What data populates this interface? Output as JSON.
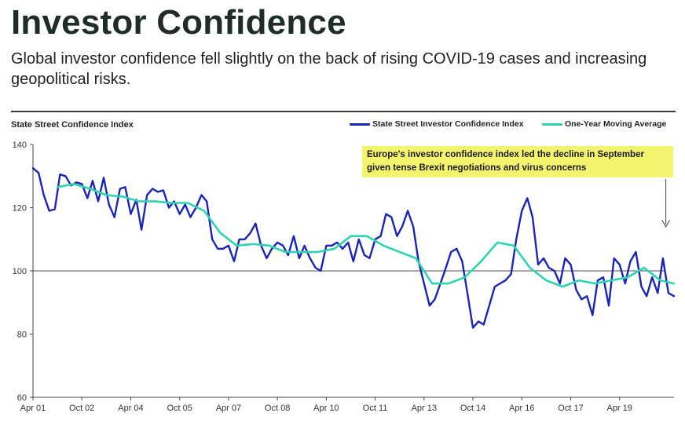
{
  "header": {
    "title": "Investor Confidence",
    "subtitle": "Global investor confidence fell slightly on the back of rising COVID-19 cases and increasing geopolitical risks."
  },
  "chart_data": {
    "type": "line",
    "ylabel": "State Street Confidence Index",
    "ylim": [
      60,
      140
    ],
    "yticks": [
      60,
      80,
      100,
      120,
      140
    ],
    "xlim": [
      2001.25,
      2020.92
    ],
    "xticks": [
      {
        "label": "Apr 01",
        "x": 2001.25
      },
      {
        "label": "Oct 02",
        "x": 2002.75
      },
      {
        "label": "Apr 04",
        "x": 2004.25
      },
      {
        "label": "Oct 05",
        "x": 2005.75
      },
      {
        "label": "Apr 07",
        "x": 2007.25
      },
      {
        "label": "Oct 08",
        "x": 2008.75
      },
      {
        "label": "Apr 10",
        "x": 2010.25
      },
      {
        "label": "Oct 11",
        "x": 2011.75
      },
      {
        "label": "Apr 13",
        "x": 2013.25
      },
      {
        "label": "Oct 14",
        "x": 2014.75
      },
      {
        "label": "Apr 16",
        "x": 2016.25
      },
      {
        "label": "Oct 17",
        "x": 2017.75
      },
      {
        "label": "Apr 19",
        "x": 2019.25
      }
    ],
    "reference_line": 100,
    "grid": false,
    "legend_position": "top-right",
    "annotation": "Europe's investor confidence index led the decline in September given tense Brexit negotiations and virus concerns",
    "annotation_arrow_x": 2020.67,
    "series": [
      {
        "name": "State Street Investor Confidence Index",
        "color": "#1a24b5",
        "points": [
          [
            2001.25,
            132.5
          ],
          [
            2001.42,
            131
          ],
          [
            2001.58,
            124
          ],
          [
            2001.75,
            119
          ],
          [
            2001.92,
            119.5
          ],
          [
            2002.08,
            130.5
          ],
          [
            2002.25,
            130
          ],
          [
            2002.42,
            127
          ],
          [
            2002.58,
            128
          ],
          [
            2002.75,
            127.5
          ],
          [
            2002.92,
            123
          ],
          [
            2003.08,
            128.5
          ],
          [
            2003.25,
            122
          ],
          [
            2003.42,
            129.5
          ],
          [
            2003.58,
            121
          ],
          [
            2003.75,
            117
          ],
          [
            2003.92,
            126
          ],
          [
            2004.08,
            126.5
          ],
          [
            2004.25,
            118
          ],
          [
            2004.42,
            122.5
          ],
          [
            2004.58,
            113
          ],
          [
            2004.75,
            124
          ],
          [
            2004.92,
            126
          ],
          [
            2005.08,
            125
          ],
          [
            2005.25,
            125.5
          ],
          [
            2005.42,
            120
          ],
          [
            2005.58,
            122
          ],
          [
            2005.75,
            118
          ],
          [
            2005.92,
            121
          ],
          [
            2006.08,
            117
          ],
          [
            2006.25,
            120
          ],
          [
            2006.42,
            124
          ],
          [
            2006.58,
            122
          ],
          [
            2006.75,
            110
          ],
          [
            2006.92,
            107
          ],
          [
            2007.08,
            107
          ],
          [
            2007.25,
            108
          ],
          [
            2007.42,
            103
          ],
          [
            2007.58,
            110
          ],
          [
            2007.75,
            110
          ],
          [
            2007.92,
            112
          ],
          [
            2008.08,
            115
          ],
          [
            2008.25,
            108
          ],
          [
            2008.42,
            104
          ],
          [
            2008.58,
            107
          ],
          [
            2008.75,
            109
          ],
          [
            2008.92,
            108
          ],
          [
            2009.08,
            105
          ],
          [
            2009.25,
            111
          ],
          [
            2009.42,
            104
          ],
          [
            2009.58,
            108
          ],
          [
            2009.75,
            104
          ],
          [
            2009.92,
            101
          ],
          [
            2010.08,
            100
          ],
          [
            2010.25,
            108
          ],
          [
            2010.42,
            108
          ],
          [
            2010.58,
            109
          ],
          [
            2010.75,
            107
          ],
          [
            2010.92,
            109
          ],
          [
            2011.08,
            103
          ],
          [
            2011.25,
            110
          ],
          [
            2011.42,
            105
          ],
          [
            2011.58,
            104
          ],
          [
            2011.75,
            110
          ],
          [
            2011.92,
            111
          ],
          [
            2012.08,
            118
          ],
          [
            2012.25,
            117
          ],
          [
            2012.42,
            111
          ],
          [
            2012.58,
            114
          ],
          [
            2012.75,
            119
          ],
          [
            2012.92,
            114
          ],
          [
            2013.08,
            103
          ],
          [
            2013.25,
            96
          ],
          [
            2013.42,
            89
          ],
          [
            2013.58,
            91
          ],
          [
            2013.75,
            96
          ],
          [
            2013.92,
            101
          ],
          [
            2014.08,
            106
          ],
          [
            2014.25,
            107
          ],
          [
            2014.42,
            103
          ],
          [
            2014.58,
            93
          ],
          [
            2014.75,
            82
          ],
          [
            2014.92,
            84
          ],
          [
            2015.08,
            83
          ],
          [
            2015.25,
            89
          ],
          [
            2015.42,
            95
          ],
          [
            2015.58,
            96
          ],
          [
            2015.75,
            97
          ],
          [
            2015.92,
            99
          ],
          [
            2016.08,
            110
          ],
          [
            2016.25,
            119
          ],
          [
            2016.42,
            123
          ],
          [
            2016.58,
            117
          ],
          [
            2016.75,
            102
          ],
          [
            2016.92,
            104
          ],
          [
            2017.08,
            101
          ],
          [
            2017.25,
            100
          ],
          [
            2017.42,
            96
          ],
          [
            2017.58,
            104
          ],
          [
            2017.75,
            102
          ],
          [
            2017.92,
            94
          ],
          [
            2018.08,
            91
          ],
          [
            2018.25,
            92
          ],
          [
            2018.42,
            86
          ],
          [
            2018.58,
            97
          ],
          [
            2018.75,
            98
          ],
          [
            2018.92,
            89
          ],
          [
            2019.08,
            104
          ],
          [
            2019.25,
            102
          ],
          [
            2019.42,
            96
          ],
          [
            2019.58,
            103
          ],
          [
            2019.75,
            106
          ],
          [
            2019.92,
            95
          ],
          [
            2020.08,
            92
          ],
          [
            2020.25,
            98
          ],
          [
            2020.42,
            93
          ],
          [
            2020.58,
            104
          ],
          [
            2020.75,
            93
          ],
          [
            2020.92,
            92
          ]
        ]
      },
      {
        "name": "One-Year Moving Average",
        "color": "#2ed3b0",
        "points": [
          [
            2002.0,
            126.5
          ],
          [
            2002.5,
            127.5
          ],
          [
            2003.0,
            126
          ],
          [
            2003.5,
            124
          ],
          [
            2004.0,
            123.5
          ],
          [
            2004.5,
            122
          ],
          [
            2005.0,
            122
          ],
          [
            2005.5,
            121.5
          ],
          [
            2006.0,
            121.5
          ],
          [
            2006.5,
            119
          ],
          [
            2007.0,
            112
          ],
          [
            2007.5,
            108
          ],
          [
            2008.0,
            108.5
          ],
          [
            2008.5,
            108
          ],
          [
            2009.0,
            106
          ],
          [
            2009.5,
            106
          ],
          [
            2010.0,
            106
          ],
          [
            2010.5,
            107
          ],
          [
            2011.0,
            111
          ],
          [
            2011.5,
            111
          ],
          [
            2012.0,
            108
          ],
          [
            2012.5,
            106
          ],
          [
            2013.0,
            104
          ],
          [
            2013.5,
            96
          ],
          [
            2014.0,
            96
          ],
          [
            2014.5,
            98
          ],
          [
            2015.0,
            103
          ],
          [
            2015.5,
            109
          ],
          [
            2016.0,
            108
          ],
          [
            2016.5,
            101
          ],
          [
            2017.0,
            97
          ],
          [
            2017.5,
            95
          ],
          [
            2018.0,
            97
          ],
          [
            2018.5,
            96
          ],
          [
            2019.0,
            97
          ],
          [
            2019.5,
            98
          ],
          [
            2020.0,
            101
          ],
          [
            2020.5,
            97
          ],
          [
            2020.92,
            96
          ]
        ]
      }
    ]
  }
}
